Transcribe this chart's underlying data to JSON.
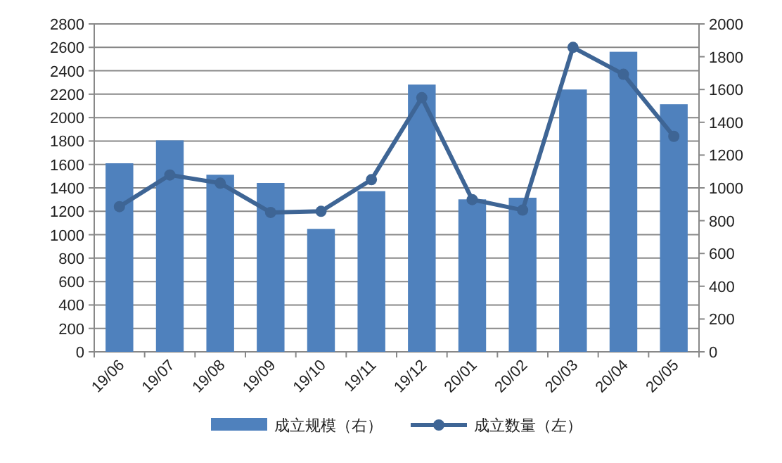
{
  "chart_data": {
    "type": "bar",
    "categories": [
      "19/06",
      "19/07",
      "19/08",
      "19/09",
      "19/10",
      "19/11",
      "19/12",
      "20/01",
      "20/02",
      "20/03",
      "20/04",
      "20/05"
    ],
    "series": [
      {
        "name": "成立规模（右）",
        "axis": "y2",
        "color": "#4f81bd",
        "values": [
          1150,
          1290,
          1080,
          1030,
          750,
          980,
          1630,
          930,
          940,
          1600,
          1830,
          1510
        ]
      },
      {
        "name": "成立数量（左）",
        "type": "line",
        "axis": "y",
        "color": "#3e6595",
        "marker": "circle",
        "values": [
          1240,
          1510,
          1440,
          1190,
          1200,
          1470,
          2170,
          1300,
          1210,
          2600,
          2370,
          1840
        ]
      }
    ],
    "ylim": [
      0,
      2800
    ],
    "yticks": [
      0,
      200,
      400,
      600,
      800,
      1000,
      1200,
      1400,
      1600,
      1800,
      2000,
      2200,
      2400,
      2600,
      2800
    ],
    "y2lim": [
      0,
      2000
    ],
    "y2ticks": [
      0,
      200,
      400,
      600,
      800,
      1000,
      1200,
      1400,
      1600,
      1800,
      2000
    ],
    "grid": "y",
    "legend": "bottom"
  }
}
